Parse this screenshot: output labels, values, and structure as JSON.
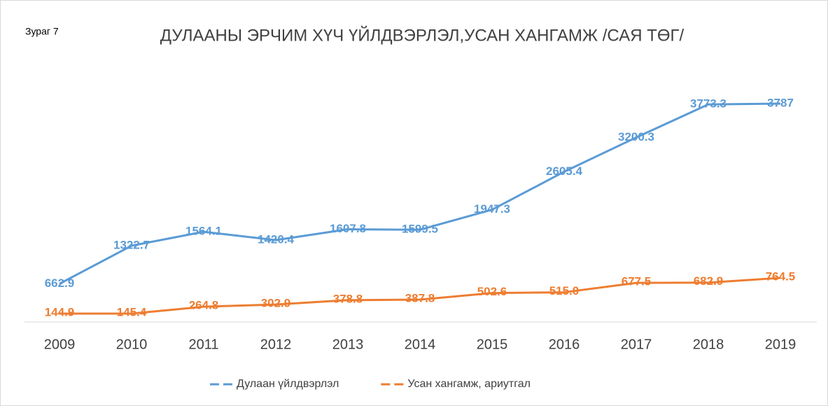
{
  "chart_data": {
    "type": "line",
    "caption": "Зураг 7",
    "title": "ДУЛААНЫ ЭРЧИМ ХҮЧ ҮЙЛДВЭРЛЭЛ,УСАН ХАНГАМЖ /САЯ ТӨГ/",
    "categories": [
      "2009",
      "2010",
      "2011",
      "2012",
      "2013",
      "2014",
      "2015",
      "2016",
      "2017",
      "2018",
      "2019"
    ],
    "series": [
      {
        "name": "Дулаан үйлдвэрлэл",
        "color": "#5b9bd5",
        "values": [
          662.9,
          1322.7,
          1564.1,
          1420.4,
          1607.8,
          1599.5,
          1947.3,
          2605.4,
          3200.3,
          3773.3,
          3787
        ]
      },
      {
        "name": "Усан хангамж, ариутгал",
        "color": "#ed7d31",
        "values": [
          144.9,
          145.4,
          264.8,
          302.9,
          378.8,
          387.8,
          502.6,
          515,
          677.5,
          682.9,
          764.5
        ],
        "value_labels": [
          "144.9",
          "145.4",
          "264.8",
          "302.9",
          "378.8",
          "387.8",
          "502.6",
          "515.0",
          "677.5",
          "682.9",
          "764.5"
        ]
      }
    ]
  }
}
